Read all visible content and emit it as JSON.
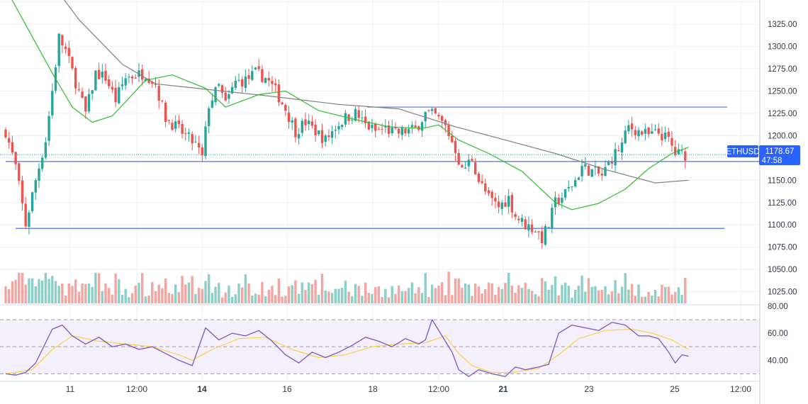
{
  "chart_data": {
    "type": "candlestick",
    "symbol_badge": "ETHUSD",
    "last_price_label": "1178.67",
    "countdown_label": "47:58",
    "last_price": 1178.67,
    "price_axis": {
      "ticks": [
        1325,
        1300,
        1275,
        1250,
        1225,
        1200,
        1175,
        1150,
        1125,
        1100,
        1075,
        1050,
        1025
      ],
      "tick_labels": [
        "1325.00",
        "1300.00",
        "1275.00",
        "1250.00",
        "1225.00",
        "1200.00",
        "1175.00",
        "1150.00",
        "1125.00",
        "1100.00",
        "1075.00",
        "1050.00",
        "1025.00"
      ],
      "range": [
        1012,
        1352
      ]
    },
    "rsi_axis": {
      "ticks": [
        80,
        60,
        40
      ],
      "tick_labels": [
        "80.00",
        "60.00",
        "40.00"
      ],
      "upper_band": 70,
      "lower_band": 30,
      "range": [
        26,
        81
      ]
    },
    "time_axis": {
      "labels": [
        {
          "text": "11",
          "bold": false
        },
        {
          "text": "12:00",
          "bold": false
        },
        {
          "text": "14",
          "bold": true
        },
        {
          "text": "16",
          "bold": false
        },
        {
          "text": "18",
          "bold": false
        },
        {
          "text": "12:00",
          "bold": false
        },
        {
          "text": "21",
          "bold": true
        },
        {
          "text": "23",
          "bold": false
        },
        {
          "text": "25",
          "bold": false
        },
        {
          "text": "12:00",
          "bold": false
        }
      ]
    },
    "horizontal_levels": [
      1232,
      1171,
      1096
    ],
    "close_path": [
      [
        0,
        1205
      ],
      [
        3,
        1165
      ],
      [
        6,
        1100
      ],
      [
        9,
        1150
      ],
      [
        12,
        1195
      ],
      [
        14,
        1250
      ],
      [
        16,
        1310
      ],
      [
        18,
        1295
      ],
      [
        21,
        1260
      ],
      [
        24,
        1225
      ],
      [
        27,
        1270
      ],
      [
        30,
        1265
      ],
      [
        33,
        1240
      ],
      [
        36,
        1265
      ],
      [
        39,
        1268
      ],
      [
        42,
        1270
      ],
      [
        45,
        1258
      ],
      [
        48,
        1220
      ],
      [
        51,
        1210
      ],
      [
        54,
        1200
      ],
      [
        57,
        1190
      ],
      [
        59,
        1175
      ],
      [
        61,
        1235
      ],
      [
        64,
        1255
      ],
      [
        66,
        1235
      ],
      [
        69,
        1260
      ],
      [
        72,
        1262
      ],
      [
        75,
        1270
      ],
      [
        78,
        1265
      ],
      [
        81,
        1250
      ],
      [
        84,
        1230
      ],
      [
        87,
        1205
      ],
      [
        90,
        1215
      ],
      [
        93,
        1205
      ],
      [
        96,
        1195
      ],
      [
        99,
        1210
      ],
      [
        102,
        1220
      ],
      [
        105,
        1225
      ],
      [
        108,
        1212
      ],
      [
        111,
        1205
      ],
      [
        114,
        1208
      ],
      [
        117,
        1202
      ],
      [
        120,
        1205
      ],
      [
        123,
        1207
      ],
      [
        126,
        1225
      ],
      [
        129,
        1222
      ],
      [
        132,
        1210
      ],
      [
        135,
        1185
      ],
      [
        137,
        1160
      ],
      [
        140,
        1175
      ],
      [
        142,
        1150
      ],
      [
        145,
        1130
      ],
      [
        148,
        1120
      ],
      [
        151,
        1130
      ],
      [
        153,
        1110
      ],
      [
        156,
        1100
      ],
      [
        159,
        1095
      ],
      [
        161,
        1085
      ],
      [
        163,
        1100
      ],
      [
        165,
        1125
      ],
      [
        168,
        1135
      ],
      [
        171,
        1150
      ],
      [
        173,
        1165
      ],
      [
        176,
        1160
      ],
      [
        179,
        1155
      ],
      [
        182,
        1175
      ],
      [
        185,
        1190
      ],
      [
        187,
        1210
      ],
      [
        190,
        1205
      ],
      [
        193,
        1200
      ],
      [
        196,
        1203
      ],
      [
        199,
        1195
      ],
      [
        201,
        1180
      ],
      [
        204,
        1178.67
      ]
    ],
    "ma_slow": [
      [
        0,
        1440
      ],
      [
        22,
        1330
      ],
      [
        35,
        1280
      ],
      [
        45,
        1258
      ],
      [
        60,
        1252
      ],
      [
        80,
        1244
      ],
      [
        100,
        1235
      ],
      [
        118,
        1230
      ],
      [
        135,
        1210
      ],
      [
        150,
        1195
      ],
      [
        165,
        1180
      ],
      [
        180,
        1162
      ],
      [
        195,
        1147
      ],
      [
        205,
        1150
      ]
    ],
    "ma_fast": [
      [
        0,
        1365
      ],
      [
        14,
        1270
      ],
      [
        20,
        1232
      ],
      [
        26,
        1215
      ],
      [
        32,
        1222
      ],
      [
        42,
        1262
      ],
      [
        50,
        1268
      ],
      [
        60,
        1253
      ],
      [
        66,
        1232
      ],
      [
        76,
        1246
      ],
      [
        84,
        1250
      ],
      [
        94,
        1228
      ],
      [
        105,
        1218
      ],
      [
        115,
        1210
      ],
      [
        125,
        1208
      ],
      [
        130,
        1212
      ],
      [
        136,
        1195
      ],
      [
        145,
        1180
      ],
      [
        155,
        1160
      ],
      [
        165,
        1125
      ],
      [
        170,
        1117
      ],
      [
        178,
        1124
      ],
      [
        186,
        1140
      ],
      [
        193,
        1163
      ],
      [
        200,
        1180
      ],
      [
        205,
        1187
      ]
    ],
    "rsi_path": [
      [
        0,
        30
      ],
      [
        3,
        29
      ],
      [
        6,
        31
      ],
      [
        9,
        38
      ],
      [
        11,
        48
      ],
      [
        14,
        63
      ],
      [
        17,
        66
      ],
      [
        20,
        58
      ],
      [
        24,
        52
      ],
      [
        28,
        57
      ],
      [
        32,
        50
      ],
      [
        36,
        52
      ],
      [
        40,
        48
      ],
      [
        44,
        50
      ],
      [
        48,
        45
      ],
      [
        52,
        40
      ],
      [
        56,
        36
      ],
      [
        60,
        64
      ],
      [
        64,
        55
      ],
      [
        68,
        60
      ],
      [
        72,
        58
      ],
      [
        76,
        62
      ],
      [
        80,
        54
      ],
      [
        84,
        44
      ],
      [
        88,
        38
      ],
      [
        92,
        46
      ],
      [
        96,
        42
      ],
      [
        100,
        46
      ],
      [
        104,
        51
      ],
      [
        108,
        57
      ],
      [
        112,
        54
      ],
      [
        116,
        50
      ],
      [
        120,
        56
      ],
      [
        124,
        52
      ],
      [
        126,
        55
      ],
      [
        128,
        70
      ],
      [
        131,
        58
      ],
      [
        134,
        46
      ],
      [
        136,
        33
      ],
      [
        139,
        28
      ],
      [
        142,
        33
      ],
      [
        146,
        30
      ],
      [
        150,
        28
      ],
      [
        153,
        35
      ],
      [
        156,
        33
      ],
      [
        160,
        35
      ],
      [
        163,
        37
      ],
      [
        166,
        60
      ],
      [
        170,
        66
      ],
      [
        174,
        64
      ],
      [
        178,
        62
      ],
      [
        182,
        68
      ],
      [
        186,
        66
      ],
      [
        190,
        58
      ],
      [
        193,
        58
      ],
      [
        196,
        56
      ],
      [
        199,
        46
      ],
      [
        201,
        38
      ],
      [
        203,
        44
      ],
      [
        205,
        43
      ]
    ],
    "rsi_ma_path": [
      [
        0,
        30
      ],
      [
        8,
        33
      ],
      [
        14,
        48
      ],
      [
        20,
        58
      ],
      [
        28,
        54
      ],
      [
        36,
        52
      ],
      [
        44,
        50
      ],
      [
        52,
        44
      ],
      [
        56,
        40
      ],
      [
        62,
        48
      ],
      [
        70,
        56
      ],
      [
        78,
        57
      ],
      [
        86,
        48
      ],
      [
        94,
        42
      ],
      [
        102,
        44
      ],
      [
        110,
        50
      ],
      [
        118,
        52
      ],
      [
        126,
        53
      ],
      [
        132,
        58
      ],
      [
        136,
        45
      ],
      [
        140,
        36
      ],
      [
        146,
        31
      ],
      [
        152,
        31
      ],
      [
        160,
        34
      ],
      [
        166,
        44
      ],
      [
        172,
        56
      ],
      [
        180,
        62
      ],
      [
        188,
        63
      ],
      [
        194,
        60
      ],
      [
        200,
        55
      ],
      [
        205,
        48
      ]
    ],
    "candle_count": 205,
    "colors": {
      "up": "#26a69a",
      "down": "#ef5350",
      "volume_up": "#8ccfc6",
      "volume_down": "#f5a5a1",
      "ma_fast": "#2ebd2b",
      "ma_slow": "#808080",
      "level_line": "#4f72e5",
      "rsi": "#7e57c2",
      "rsi_ma": "#f5d44a",
      "rsi_band_fill": "#f3effb",
      "badge": "#2962ff"
    }
  }
}
